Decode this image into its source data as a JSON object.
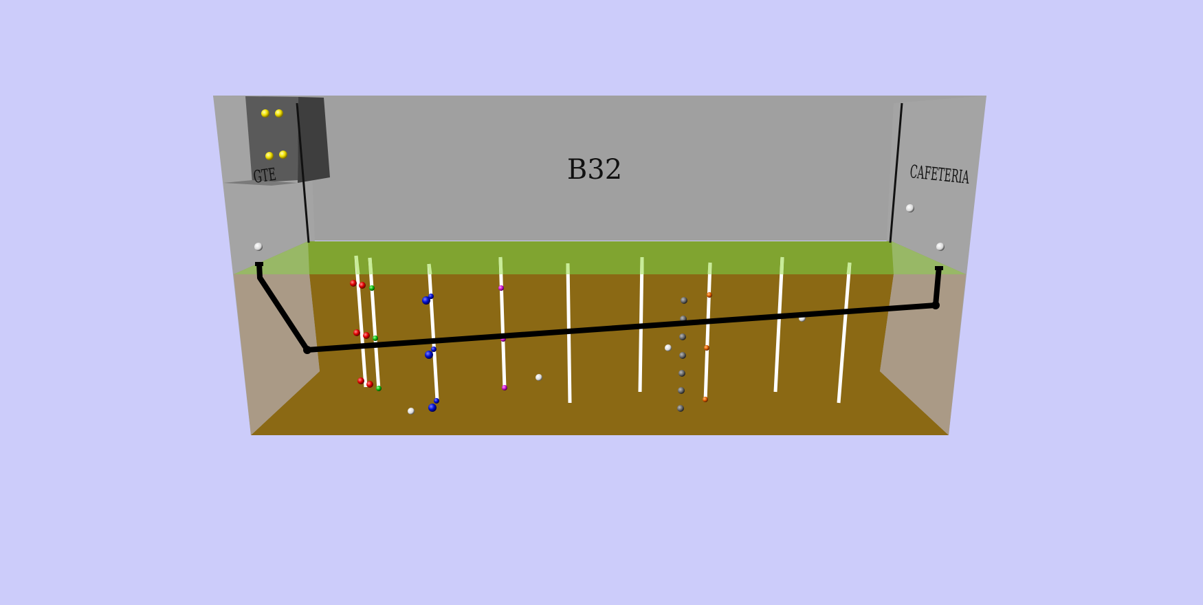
{
  "labels": {
    "main": "B32",
    "left_wall": "GTE",
    "right_wall": "CAFETERIA"
  },
  "colors": {
    "background": "#ccccfa",
    "wall": "#a0a0a0",
    "soil": "#8b6914",
    "grass": "#8db33a",
    "pipe": "#000000",
    "well": "#ffffff"
  }
}
